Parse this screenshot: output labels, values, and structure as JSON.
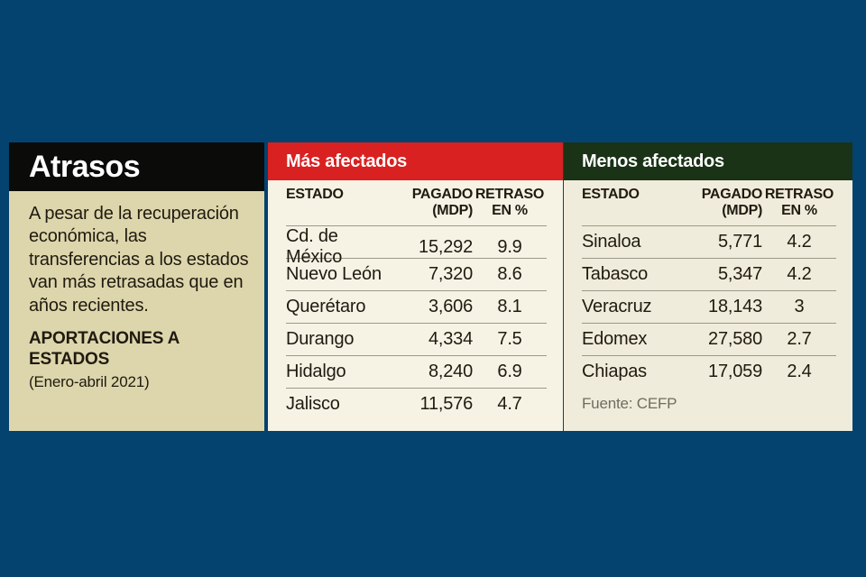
{
  "colors": {
    "background": "#04426f",
    "panel_header_black": "#0b0b09",
    "left_panel_bg": "#ddd6ac",
    "most_affected_accent": "#d92121",
    "least_affected_accent": "#1a3317",
    "most_affected_bg": "#f6f3e5",
    "least_affected_bg": "#f0ecdb",
    "text": "#201a10",
    "rule": "#9b998a",
    "source_text": "#6f6d60"
  },
  "infobox": {
    "title": "Atrasos",
    "description": "A pesar de la recuperación económica, las transferencias a los estados van más retrasadas que en años recientes.",
    "subtitle": "APORTACIONES A ESTADOS",
    "period": "(Enero-abril 2021)"
  },
  "columns": {
    "estado": "ESTADO",
    "pagado_line1": "PAGADO",
    "pagado_line2": "(MDP)",
    "retraso_line1": "RETRASO",
    "retraso_line2": "EN %"
  },
  "most_affected": {
    "title": "Más afectados",
    "rows": [
      {
        "estado": "Cd. de México",
        "pagado": "15,292",
        "retraso": "9.9"
      },
      {
        "estado": "Nuevo León",
        "pagado": "7,320",
        "retraso": "8.6"
      },
      {
        "estado": "Querétaro",
        "pagado": "3,606",
        "retraso": "8.1"
      },
      {
        "estado": "Durango",
        "pagado": "4,334",
        "retraso": "7.5"
      },
      {
        "estado": "Hidalgo",
        "pagado": "8,240",
        "retraso": "6.9"
      },
      {
        "estado": "Jalisco",
        "pagado": "11,576",
        "retraso": "4.7"
      }
    ]
  },
  "least_affected": {
    "title": "Menos afectados",
    "rows": [
      {
        "estado": "Sinaloa",
        "pagado": "5,771",
        "retraso": "4.2"
      },
      {
        "estado": "Tabasco",
        "pagado": "5,347",
        "retraso": "4.2"
      },
      {
        "estado": "Veracruz",
        "pagado": "18,143",
        "retraso": "3"
      },
      {
        "estado": "Edomex",
        "pagado": "27,580",
        "retraso": "2.7"
      },
      {
        "estado": "Chiapas",
        "pagado": "17,059",
        "retraso": "2.4"
      }
    ],
    "source": "Fuente: CEFP"
  },
  "chart_data": [
    {
      "type": "table",
      "title": "Más afectados",
      "columns": [
        "ESTADO",
        "PAGADO (MDP)",
        "RETRASO EN %"
      ],
      "rows": [
        [
          "Cd. de México",
          15292,
          9.9
        ],
        [
          "Nuevo León",
          7320,
          8.6
        ],
        [
          "Querétaro",
          3606,
          8.1
        ],
        [
          "Durango",
          4334,
          7.5
        ],
        [
          "Hidalgo",
          8240,
          6.9
        ],
        [
          "Jalisco",
          11576,
          4.7
        ]
      ]
    },
    {
      "type": "table",
      "title": "Menos afectados",
      "columns": [
        "ESTADO",
        "PAGADO (MDP)",
        "RETRASO EN %"
      ],
      "rows": [
        [
          "Sinaloa",
          5771,
          4.2
        ],
        [
          "Tabasco",
          5347,
          4.2
        ],
        [
          "Veracruz",
          18143,
          3
        ],
        [
          "Edomex",
          27580,
          2.7
        ],
        [
          "Chiapas",
          17059,
          2.4
        ]
      ],
      "source": "Fuente: CEFP"
    }
  ]
}
